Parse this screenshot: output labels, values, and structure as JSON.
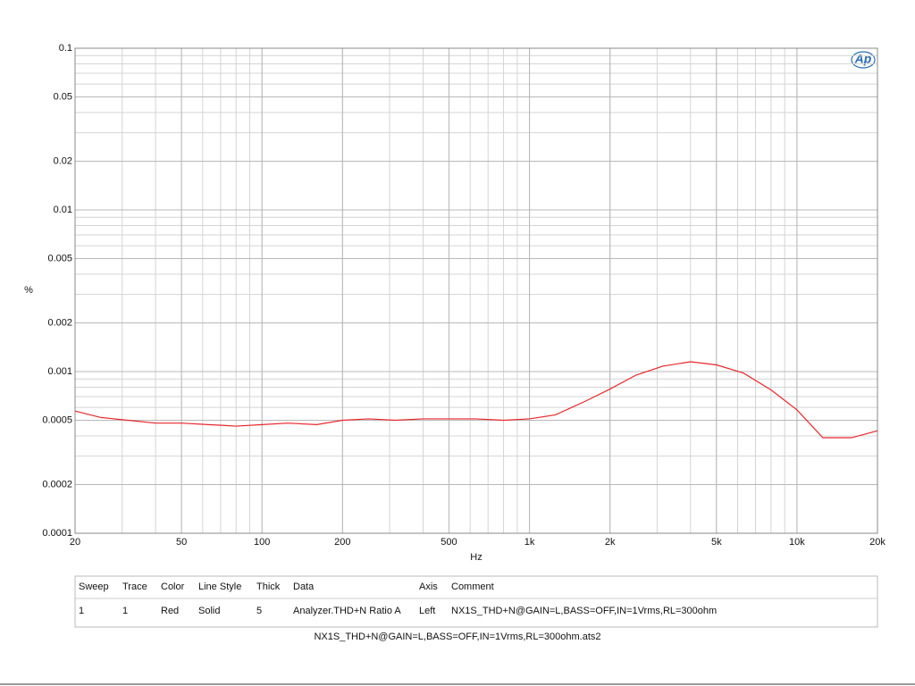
{
  "chart_data": {
    "type": "line",
    "xlabel": "Hz",
    "ylabel": "%",
    "xscale": "log",
    "yscale": "log",
    "grid": true,
    "minor_grid": true,
    "x": [
      20,
      25,
      31.5,
      40,
      50,
      63,
      80,
      100,
      125,
      160,
      200,
      250,
      315,
      400,
      500,
      630,
      800,
      1000,
      1250,
      1600,
      2000,
      2500,
      3150,
      4000,
      5000,
      6300,
      8000,
      10000,
      12500,
      16000,
      20000
    ],
    "series": [
      {
        "color": "#e8262b",
        "values": [
          0.00057,
          0.00052,
          0.0005,
          0.00048,
          0.00048,
          0.00047,
          0.00046,
          0.00047,
          0.00048,
          0.00047,
          0.0005,
          0.00051,
          0.0005,
          0.00051,
          0.00051,
          0.00051,
          0.0005,
          0.00051,
          0.00054,
          0.00065,
          0.00078,
          0.00095,
          0.00108,
          0.00115,
          0.0011,
          0.00098,
          0.00077,
          0.00058,
          0.00039,
          0.00039,
          0.00043
        ]
      }
    ],
    "xlim": [
      20,
      20000
    ],
    "xticks": [
      20,
      50,
      100,
      200,
      500,
      {
        "value": 1000,
        "label": "1k"
      },
      {
        "value": 2000,
        "label": "2k"
      },
      {
        "value": 5000,
        "label": "5k"
      },
      {
        "value": 10000,
        "label": "10k"
      },
      {
        "value": 20000,
        "label": "20k"
      }
    ],
    "ylim": [
      0.0001,
      0.1
    ],
    "yticks": [
      0.1,
      0.05,
      0.02,
      0.01,
      0.005,
      0.002,
      0.001,
      0.0005,
      0.0002,
      0.0001
    ]
  },
  "logo": "Ap",
  "table": {
    "columns": [
      "Sweep",
      "Trace",
      "Color",
      "Line Style",
      "Thick",
      "Data",
      "Axis",
      "Comment"
    ],
    "rows": [
      [
        "1",
        "1",
        "Red",
        "Solid",
        "5",
        "Analyzer.THD+N Ratio A",
        "Left",
        "NX1S_THD+N@GAIN=L,BASS=OFF,IN=1Vrms,RL=300ohm"
      ]
    ]
  },
  "footer": "NX1S_THD+N@GAIN=L,BASS=OFF,IN=1Vrms,RL=300ohm.ats2"
}
